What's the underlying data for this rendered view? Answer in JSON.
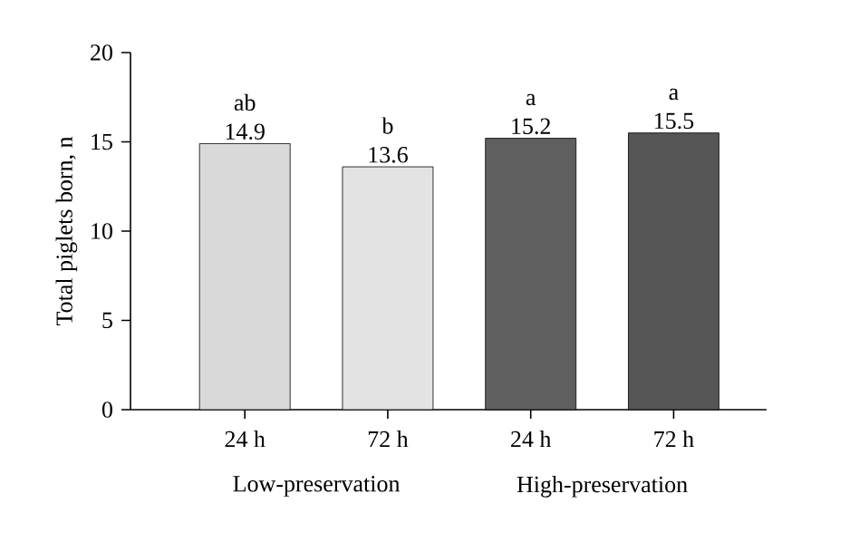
{
  "chart_data": {
    "type": "bar",
    "ylabel": "Total piglets born, n",
    "categories": [
      "24 h",
      "72 h",
      "24 h",
      "72 h"
    ],
    "values": [
      14.9,
      13.6,
      15.2,
      15.5
    ],
    "colors": [
      "#d9d9d9",
      "#e3e3e3",
      "#5f5f5f",
      "#555555"
    ],
    "data_labels": true,
    "ylim": [
      0,
      20
    ],
    "yticks": [
      0,
      5,
      10,
      15,
      20
    ],
    "grid": false,
    "annotations": [
      "ab",
      "b",
      "a",
      "a",
      "Low-preservation",
      "High-preservation"
    ]
  }
}
